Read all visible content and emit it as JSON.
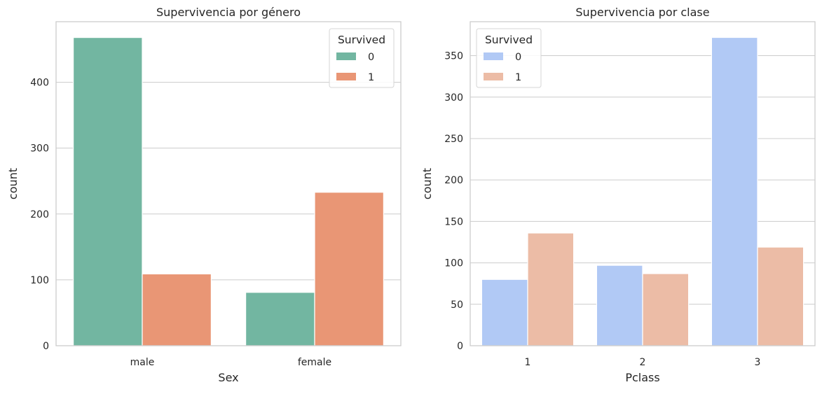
{
  "chart_data": [
    {
      "type": "bar",
      "title": "Supervivencia por género",
      "xlabel": "Sex",
      "ylabel": "count",
      "categories": [
        "male",
        "female"
      ],
      "yticks": [
        0,
        100,
        200,
        300,
        400
      ],
      "ylim": [
        0,
        492
      ],
      "grid": true,
      "legend": {
        "title": "Survived",
        "placement": "top-right"
      },
      "series": [
        {
          "name": "0",
          "values": [
            468,
            81
          ],
          "color": "#72b6a1"
        },
        {
          "name": "1",
          "values": [
            109,
            233
          ],
          "color": "#e99675"
        }
      ]
    },
    {
      "type": "bar",
      "title": "Supervivencia por clase",
      "xlabel": "Pclass",
      "ylabel": "count",
      "categories": [
        "1",
        "2",
        "3"
      ],
      "yticks": [
        0,
        50,
        100,
        150,
        200,
        250,
        300,
        350
      ],
      "ylim": [
        0,
        391
      ],
      "grid": true,
      "legend": {
        "title": "Survived",
        "placement": "top-left"
      },
      "series": [
        {
          "name": "0",
          "values": [
            80,
            97,
            372
          ],
          "color": "#b1c9f5"
        },
        {
          "name": "1",
          "values": [
            136,
            87,
            119
          ],
          "color": "#ecbca6"
        }
      ]
    }
  ]
}
